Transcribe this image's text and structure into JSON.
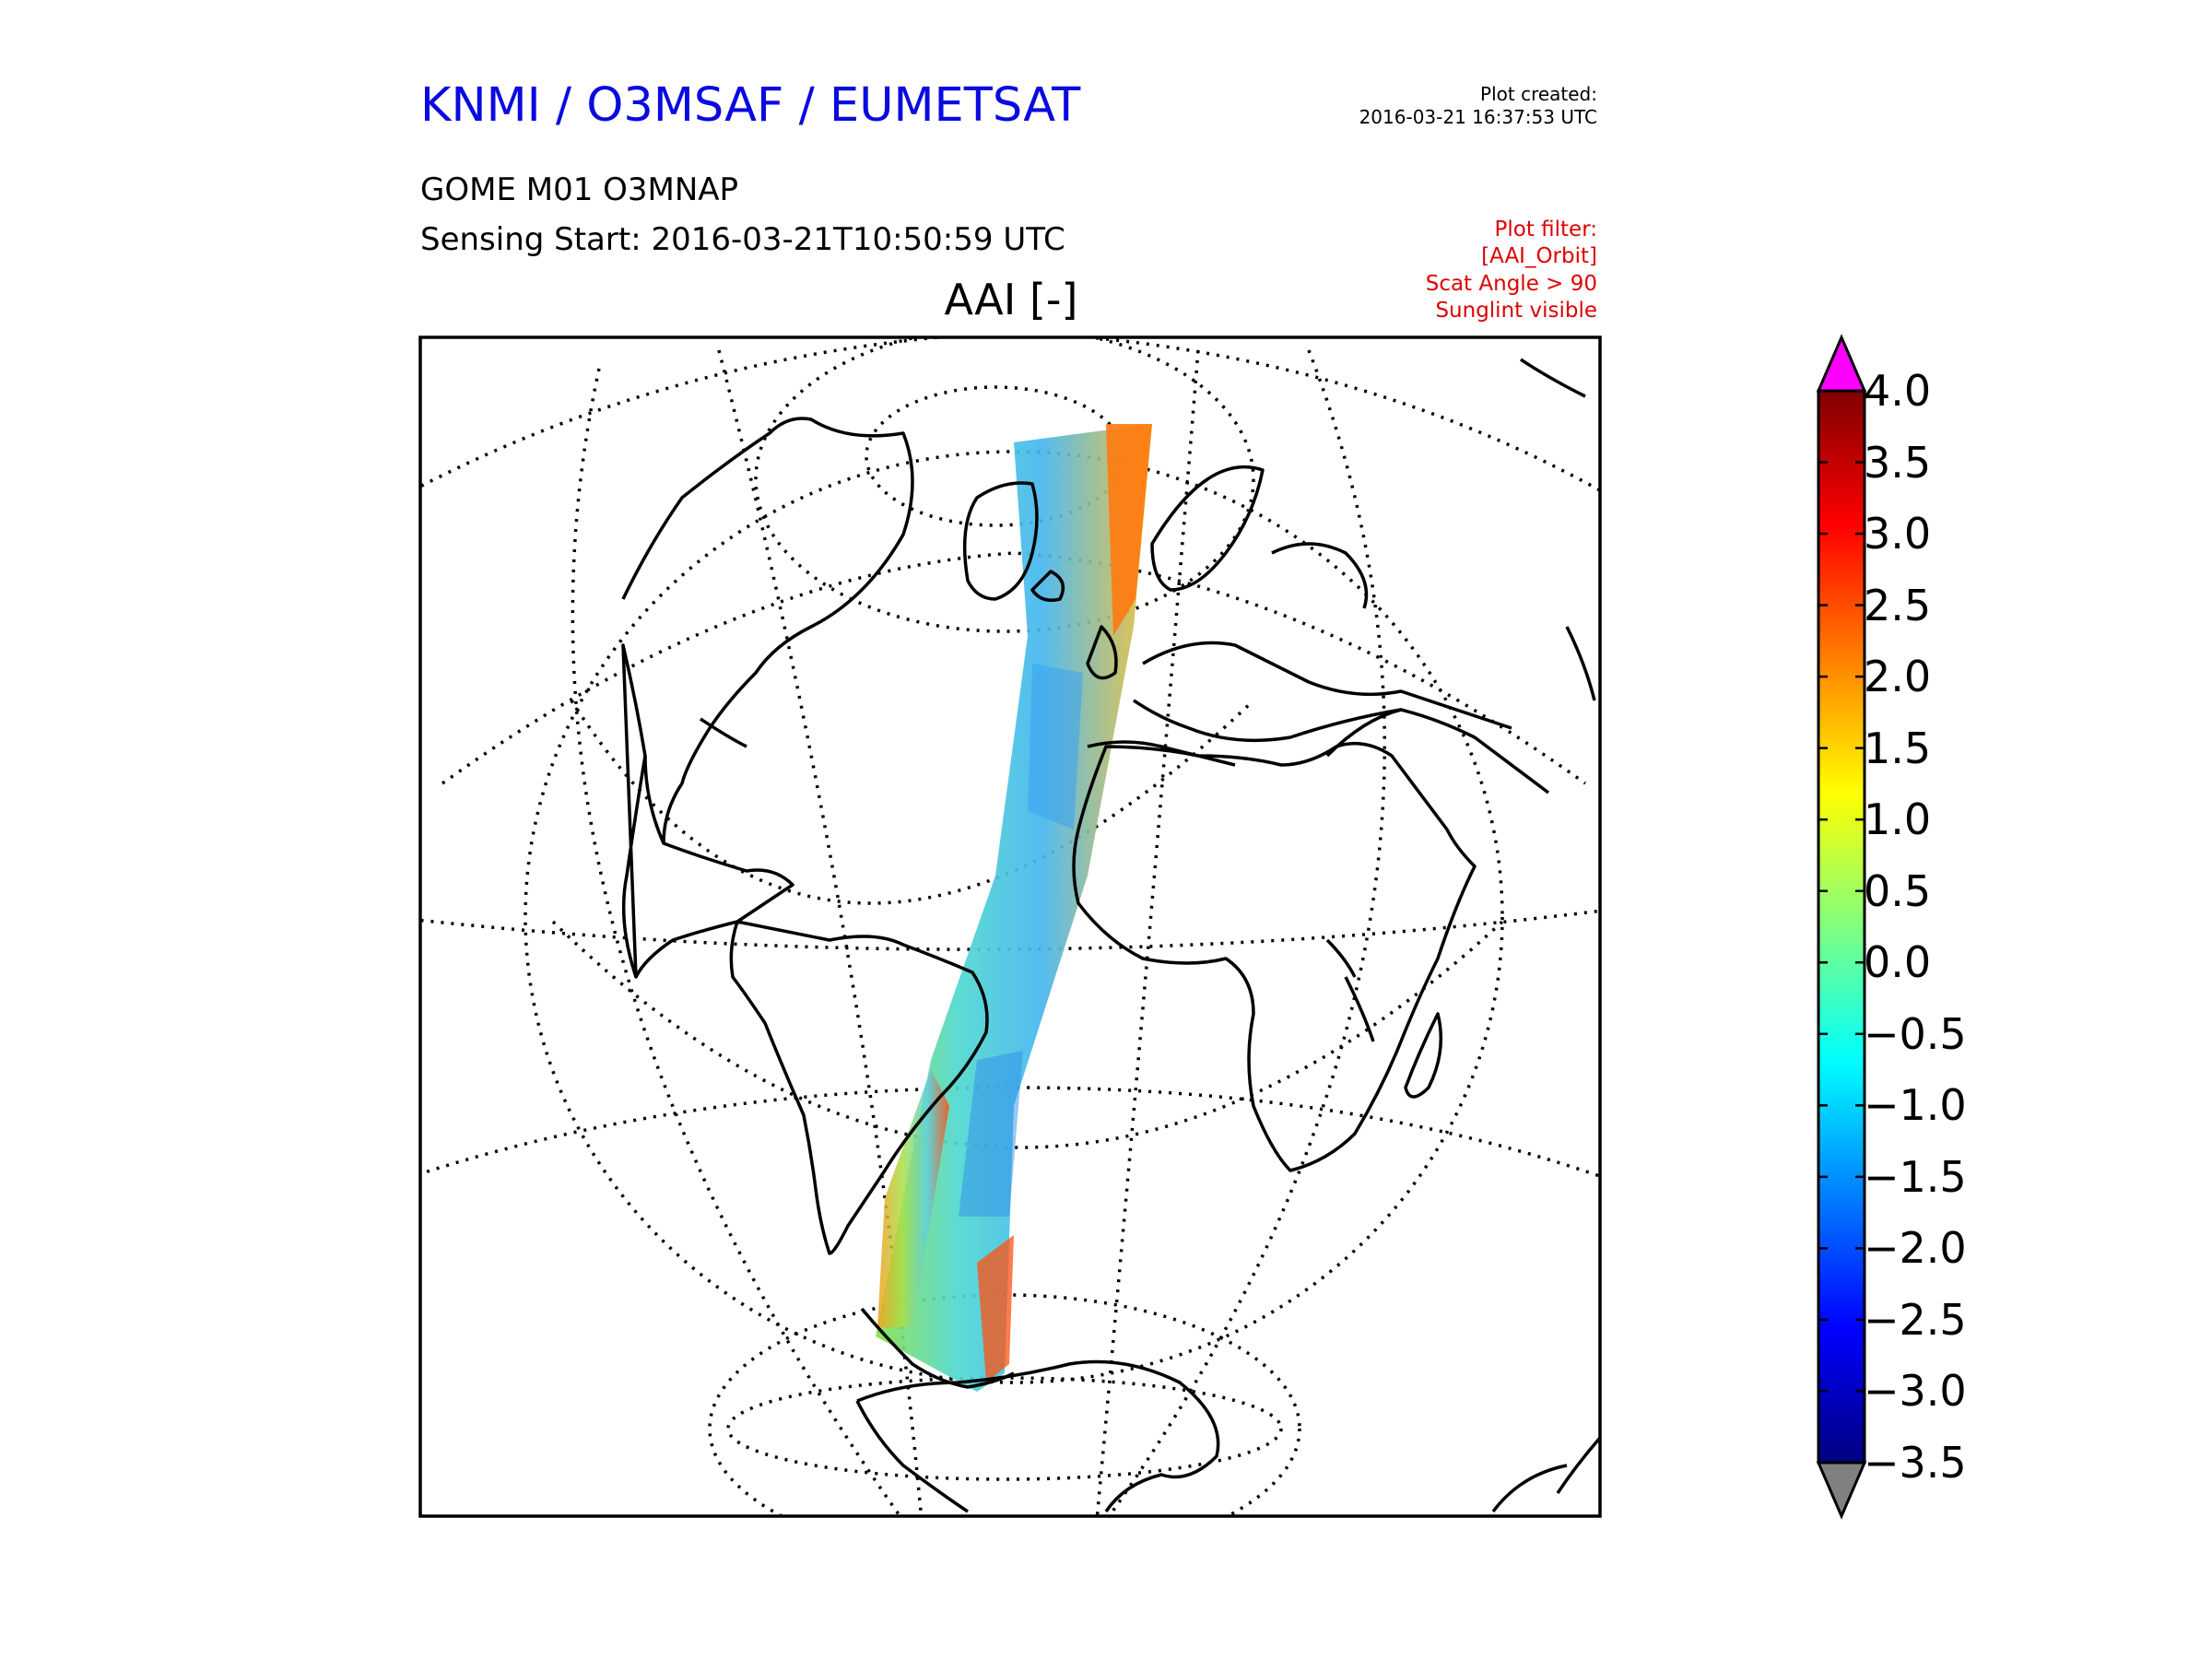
{
  "header": {
    "organization": "KNMI / O3MSAF / EUMETSAT",
    "plot_created_label": "Plot created:",
    "plot_created_time": "2016-03-21 16:37:53 UTC",
    "product": "GOME M01 O3MNAP",
    "sensing_start": "Sensing Start: 2016-03-21T10:50:59 UTC",
    "filter_lines": [
      "Plot filter:",
      "[AAI_Orbit]",
      "Scat Angle > 90",
      "Sunglint visible"
    ]
  },
  "map": {
    "title": "AAI [-]",
    "projection": "orthographic",
    "graticule": "dotted",
    "features": [
      "coastlines",
      "satellite-swath"
    ],
    "swath_variable": "AAI"
  },
  "colorbar": {
    "min": -3.5,
    "max": 4.0,
    "colormap": "jet",
    "extend": "both",
    "over_color": "#ff00ff",
    "under_color": "#808080",
    "ticks": [
      "4.0",
      "3.5",
      "3.0",
      "2.5",
      "2.0",
      "1.5",
      "1.0",
      "0.5",
      "0.0",
      "−0.5",
      "−1.0",
      "−1.5",
      "−2.0",
      "−2.5",
      "−3.0",
      "−3.5"
    ]
  }
}
